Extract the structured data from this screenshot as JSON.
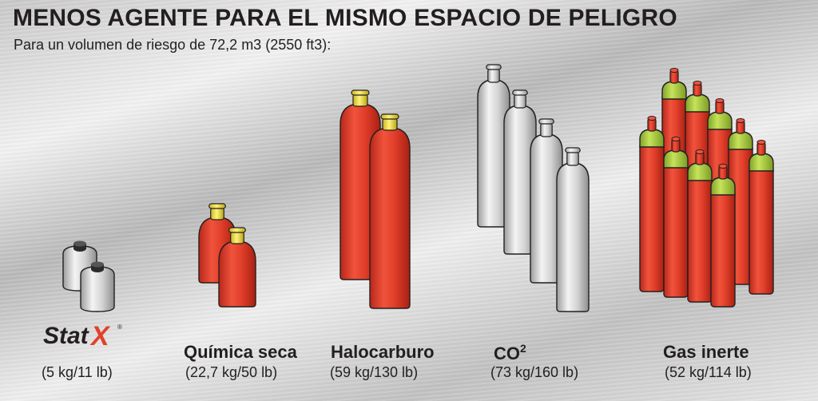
{
  "title": "MENOS AGENTE PARA EL MISMO ESPACIO DE PELIGRO",
  "subtitle": "Para un volumen de riesgo de 72,2 m3 (2550 ft3):",
  "logo": {
    "text": "StatX",
    "reg": "®"
  },
  "colors": {
    "red": "#e2402b",
    "gray": "#d6d6d6",
    "yellow_cap": "#f2e23a",
    "green_cap": "#a9cf3f",
    "text": "#231f20"
  },
  "agents": [
    {
      "name": "Stat-X",
      "weight": "(5 kg/11 lb)"
    },
    {
      "name": "Química seca",
      "weight": "(22,7 kg/50 lb)"
    },
    {
      "name": "Halocarburo",
      "weight": "(59 kg/130 lb)"
    },
    {
      "name": "CO",
      "name_sup": "2",
      "weight": "(73 kg/160 lb)"
    },
    {
      "name": "Gas inerte",
      "weight": "(52 kg/114 lb)"
    }
  ]
}
